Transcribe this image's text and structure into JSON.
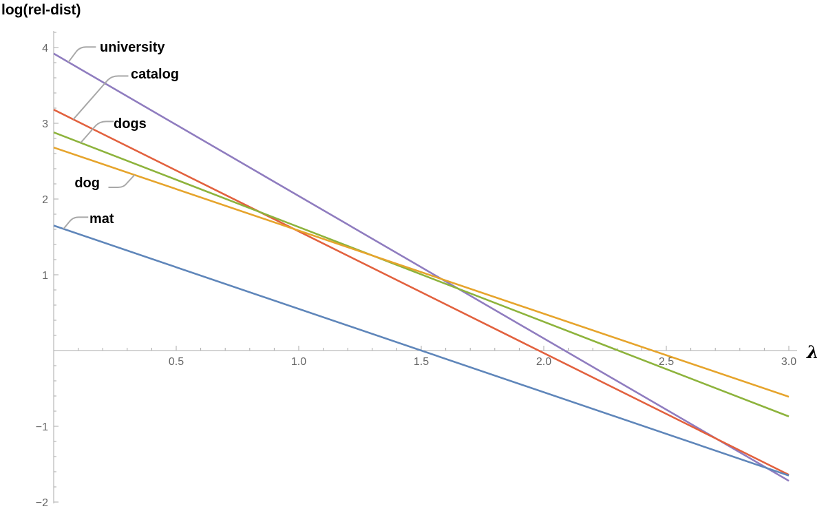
{
  "chart_data": {
    "type": "line",
    "title": "",
    "xlabel": "λ",
    "ylabel": "log(rel-dist)",
    "xlim": [
      0,
      3.1
    ],
    "ylim": [
      -2,
      4.2
    ],
    "grid": false,
    "legend": "inline labels near line starts",
    "x_ticks": [
      0.5,
      1.0,
      1.5,
      2.0,
      2.5,
      3.0
    ],
    "x_tick_labels": [
      "0.5",
      "1.0",
      "1.5",
      "2.0",
      "2.5",
      "3.0"
    ],
    "y_ticks": [
      -2,
      -1,
      1,
      2,
      3,
      4
    ],
    "y_tick_labels": [
      "−2",
      "−1",
      "1",
      "2",
      "3",
      "4"
    ],
    "series": [
      {
        "name": "university",
        "color": "#8f7cbf",
        "points": [
          [
            0,
            3.92
          ],
          [
            3,
            -1.72
          ]
        ]
      },
      {
        "name": "catalog",
        "color": "#e2613e",
        "points": [
          [
            0,
            3.18
          ],
          [
            3,
            -1.64
          ]
        ]
      },
      {
        "name": "dogs",
        "color": "#8db33c",
        "points": [
          [
            0,
            2.88
          ],
          [
            3,
            -0.87
          ]
        ]
      },
      {
        "name": "dog",
        "color": "#e6a42c",
        "points": [
          [
            0,
            2.68
          ],
          [
            3,
            -0.61
          ]
        ]
      },
      {
        "name": "mat",
        "color": "#5f86ba",
        "points": [
          [
            0,
            1.65
          ],
          [
            3,
            -1.65
          ]
        ]
      }
    ]
  }
}
